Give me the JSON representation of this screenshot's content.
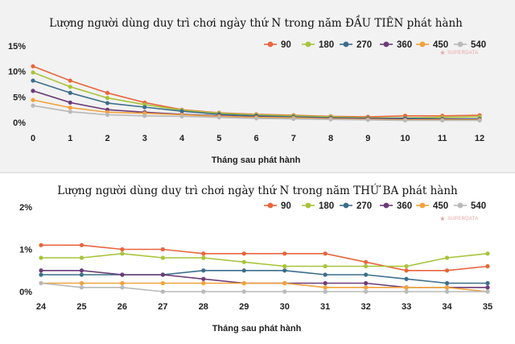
{
  "watermark": "SUPERDATA",
  "chart_data": [
    {
      "type": "line",
      "title": "Lượng người dùng duy trì chơi ngày thứ N trong năm ĐẦU TIÊN phát hành",
      "xlabel": "Tháng sau phát hành",
      "ylabel": "",
      "x": [
        0,
        1,
        2,
        3,
        4,
        5,
        6,
        7,
        8,
        9,
        10,
        11,
        12
      ],
      "ylim": [
        0,
        15
      ],
      "yticks": [
        "0%",
        "5%",
        "10%",
        "15%"
      ],
      "y_tick_values": [
        0,
        5,
        10,
        15
      ],
      "grid": false,
      "legend_position": "top-right",
      "background": "#f2f2f2",
      "series": [
        {
          "name": "90",
          "color": "#e8663d",
          "values": [
            11.0,
            8.2,
            5.8,
            3.9,
            2.5,
            1.9,
            1.6,
            1.4,
            1.2,
            1.1,
            1.3,
            1.3,
            1.4
          ]
        },
        {
          "name": "180",
          "color": "#a8c43a",
          "values": [
            9.8,
            7.0,
            4.8,
            3.5,
            2.4,
            1.8,
            1.5,
            1.3,
            1.1,
            0.9,
            0.9,
            1.0,
            1.1
          ]
        },
        {
          "name": "270",
          "color": "#3c6e8c",
          "values": [
            8.2,
            5.8,
            3.8,
            3.0,
            2.2,
            1.6,
            1.3,
            1.1,
            0.9,
            0.8,
            0.8,
            0.7,
            0.7
          ]
        },
        {
          "name": "360",
          "color": "#6c3d78",
          "values": [
            6.2,
            3.9,
            2.5,
            2.0,
            1.6,
            1.3,
            1.1,
            0.9,
            0.8,
            0.7,
            0.6,
            0.6,
            0.6
          ]
        },
        {
          "name": "450",
          "color": "#f2a23c",
          "values": [
            4.4,
            2.9,
            2.0,
            1.8,
            1.5,
            1.2,
            1.0,
            0.9,
            0.7,
            0.6,
            0.5,
            0.5,
            0.5
          ]
        },
        {
          "name": "540",
          "color": "#b9b9b9",
          "values": [
            3.3,
            2.1,
            1.5,
            1.3,
            1.2,
            1.0,
            0.8,
            0.7,
            0.6,
            0.5,
            0.4,
            0.4,
            0.4
          ]
        }
      ]
    },
    {
      "type": "line",
      "title": "Lượng người dùng duy trì chơi ngày thứ N trong năm THỨ BA phát hành",
      "xlabel": "Tháng sau phát hành",
      "ylabel": "",
      "x": [
        24,
        25,
        26,
        27,
        28,
        29,
        30,
        31,
        32,
        33,
        34,
        35
      ],
      "ylim": [
        0,
        2
      ],
      "yticks": [
        "0%",
        "1%",
        "2%"
      ],
      "y_tick_values": [
        0,
        1,
        2
      ],
      "grid": false,
      "legend_position": "top-right",
      "background": "#ffffff",
      "series": [
        {
          "name": "90",
          "color": "#e8663d",
          "values": [
            1.1,
            1.1,
            1.0,
            1.0,
            0.9,
            0.9,
            0.9,
            0.9,
            0.7,
            0.5,
            0.5,
            0.6
          ]
        },
        {
          "name": "180",
          "color": "#a8c43a",
          "values": [
            0.8,
            0.8,
            0.9,
            0.8,
            0.8,
            0.7,
            0.6,
            0.6,
            0.6,
            0.6,
            0.8,
            0.9
          ]
        },
        {
          "name": "270",
          "color": "#3c6e8c",
          "values": [
            0.4,
            0.4,
            0.4,
            0.4,
            0.5,
            0.5,
            0.5,
            0.4,
            0.4,
            0.3,
            0.2,
            0.2
          ]
        },
        {
          "name": "360",
          "color": "#6c3d78",
          "values": [
            0.5,
            0.5,
            0.4,
            0.4,
            0.3,
            0.2,
            0.2,
            0.2,
            0.2,
            0.1,
            0.1,
            0.1
          ]
        },
        {
          "name": "450",
          "color": "#f2a23c",
          "values": [
            0.2,
            0.2,
            0.2,
            0.2,
            0.2,
            0.2,
            0.2,
            0.1,
            0.1,
            0.1,
            0.1,
            0.0
          ]
        },
        {
          "name": "540",
          "color": "#b9b9b9",
          "values": [
            0.2,
            0.1,
            0.1,
            0.0,
            0.0,
            0.0,
            0.0,
            0.0,
            0.0,
            0.0,
            0.0,
            0.0
          ]
        }
      ]
    }
  ]
}
